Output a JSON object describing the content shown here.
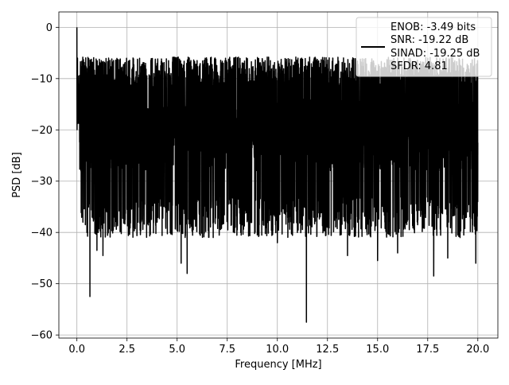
{
  "chart_data": {
    "type": "line",
    "title": "",
    "xlabel": "Frequency [MHz]",
    "ylabel": "PSD [dB]",
    "xlim": [
      -0.9,
      21.0
    ],
    "ylim": [
      -60.6,
      3.0
    ],
    "x_ticks": [
      0.0,
      2.5,
      5.0,
      7.5,
      10.0,
      12.5,
      15.0,
      17.5,
      20.0
    ],
    "x_tick_labels": [
      "0.0",
      "2.5",
      "5.0",
      "7.5",
      "10.0",
      "12.5",
      "15.0",
      "17.5",
      "20.0"
    ],
    "y_ticks": [
      0,
      -10,
      -20,
      -30,
      -40,
      -50,
      -60
    ],
    "y_tick_labels": [
      "0",
      "−10",
      "−20",
      "−30",
      "−40",
      "−50",
      "−60"
    ],
    "grid": true,
    "legend_position": "top-right",
    "legend_lines": [
      "ENOB: -3.49 bits",
      "SNR: -19.22 dB",
      "SINAD: -19.25 dB",
      "SFDR: 4.81"
    ],
    "series": [
      {
        "color": "#000000",
        "noise_floor_db": -21,
        "noise_band_db": [
          -37,
          -10
        ],
        "x": [
          0.0,
          0.03,
          0.06,
          0.1,
          0.15,
          0.2,
          0.25,
          0.3,
          0.4,
          0.5,
          0.6,
          0.65,
          0.8,
          1.0,
          1.2,
          1.3,
          1.5,
          2.0,
          2.5,
          3.0,
          3.1,
          3.5,
          4.0,
          4.5,
          5.0,
          5.2,
          5.5,
          6.0,
          6.5,
          6.8,
          7.0,
          7.5,
          7.9,
          8.0,
          8.5,
          9.0,
          9.5,
          10.0,
          10.5,
          11.0,
          11.45,
          11.5,
          12.0,
          12.5,
          13.0,
          13.5,
          14.0,
          14.5,
          15.0,
          15.3,
          15.5,
          16.0,
          16.5,
          17.0,
          17.5,
          17.8,
          18.0,
          18.5,
          19.0,
          19.5,
          19.9,
          20.0
        ],
        "y": [
          0.0,
          -6.0,
          -9.5,
          -13.0,
          -14.5,
          -28.0,
          -17.5,
          -38.0,
          -24.0,
          -40.0,
          -29.0,
          -52.5,
          -35.0,
          -43.5,
          -30.0,
          -44.5,
          -36.0,
          -38.0,
          -35.5,
          -39.5,
          -12.0,
          -34.0,
          -38.0,
          -36.0,
          -8.5,
          -46.0,
          -48.0,
          -34.0,
          -37.0,
          -41.0,
          -9.0,
          -35.0,
          -39.0,
          -39.5,
          -33.0,
          -40.5,
          -11.0,
          -42.0,
          -36.0,
          -40.0,
          -57.5,
          -13.5,
          -37.0,
          -39.0,
          -36.0,
          -44.5,
          -38.0,
          -34.0,
          -45.5,
          -10.0,
          -36.0,
          -44.0,
          -37.0,
          -38.5,
          -34.0,
          -48.5,
          -9.5,
          -45.0,
          -40.5,
          -36.0,
          -46.0,
          -22.5
        ]
      }
    ]
  }
}
